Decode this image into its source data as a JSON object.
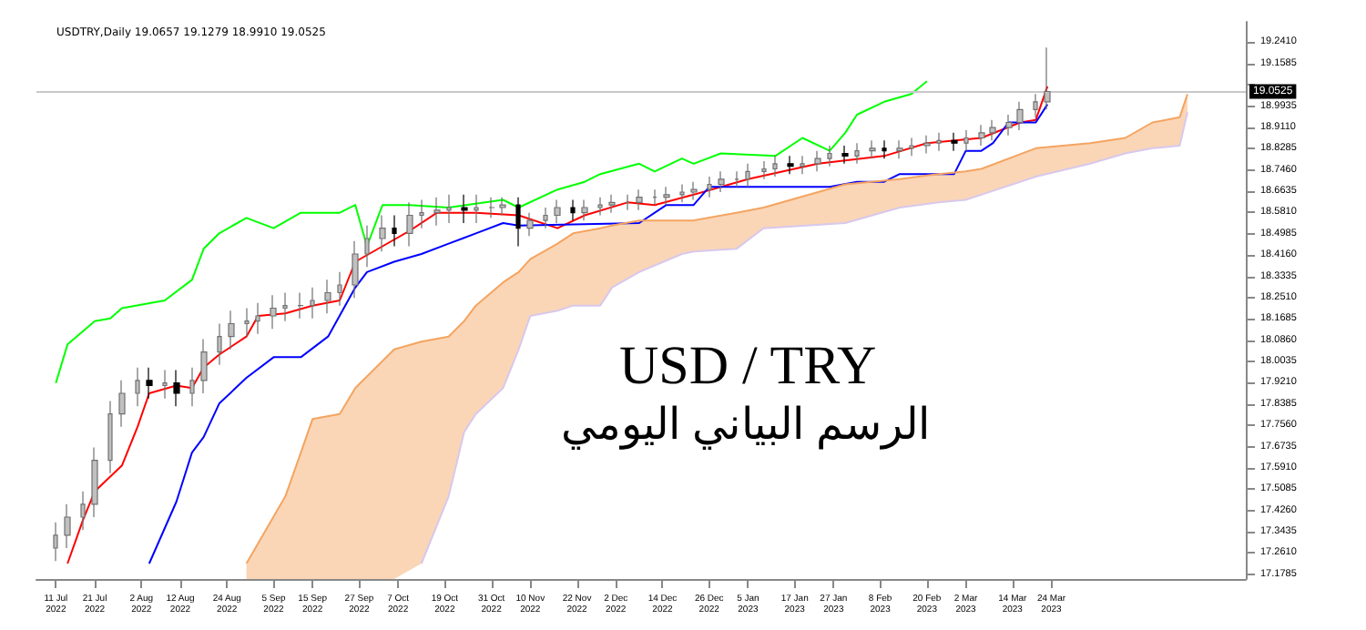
{
  "chart_data": {
    "type": "candlestick",
    "title": "USDTRY,Daily 19.0657 19.1279 18.9910 19.0525",
    "annotations": [
      "USD / TRY",
      "الرسم البياني اليومي"
    ],
    "x": [
      "2022-07-11",
      "2022-07-14",
      "2022-07-18",
      "2022-07-21",
      "2022-07-25",
      "2022-07-28",
      "2022-08-01",
      "2022-08-04",
      "2022-08-08",
      "2022-08-11",
      "2022-08-15",
      "2022-08-18",
      "2022-08-22",
      "2022-08-25",
      "2022-08-29",
      "2022-09-01",
      "2022-09-05",
      "2022-09-08",
      "2022-09-12",
      "2022-09-15",
      "2022-09-19",
      "2022-09-22",
      "2022-09-26",
      "2022-09-29",
      "2022-10-03",
      "2022-10-06",
      "2022-10-10",
      "2022-10-13",
      "2022-10-17",
      "2022-10-20",
      "2022-10-24",
      "2022-10-27",
      "2022-10-31",
      "2022-11-03",
      "2022-11-07",
      "2022-11-10",
      "2022-11-14",
      "2022-11-17",
      "2022-11-21",
      "2022-11-24",
      "2022-11-28",
      "2022-12-01",
      "2022-12-05",
      "2022-12-08",
      "2022-12-12",
      "2022-12-15",
      "2022-12-19",
      "2022-12-22",
      "2022-12-26",
      "2022-12-29",
      "2023-01-02",
      "2023-01-05",
      "2023-01-09",
      "2023-01-12",
      "2023-01-16",
      "2023-01-19",
      "2023-01-23",
      "2023-01-26",
      "2023-01-30",
      "2023-02-02",
      "2023-02-06",
      "2023-02-09",
      "2023-02-13",
      "2023-02-16",
      "2023-02-20",
      "2023-02-23",
      "2023-02-27",
      "2023-03-02",
      "2023-03-06",
      "2023-03-09",
      "2023-03-13",
      "2023-03-16",
      "2023-03-20",
      "2023-03-23"
    ],
    "ohlc": [
      [
        17.28,
        17.38,
        17.23,
        17.33
      ],
      [
        17.33,
        17.45,
        17.28,
        17.4
      ],
      [
        17.4,
        17.5,
        17.35,
        17.45
      ],
      [
        17.45,
        17.67,
        17.4,
        17.62
      ],
      [
        17.62,
        17.85,
        17.57,
        17.8
      ],
      [
        17.8,
        17.93,
        17.75,
        17.88
      ],
      [
        17.88,
        17.98,
        17.83,
        17.93
      ],
      [
        17.93,
        17.98,
        17.86,
        17.91
      ],
      [
        17.91,
        17.97,
        17.86,
        17.92
      ],
      [
        17.92,
        17.97,
        17.83,
        17.88
      ],
      [
        17.88,
        17.98,
        17.83,
        17.93
      ],
      [
        17.93,
        18.09,
        17.88,
        18.04
      ],
      [
        18.04,
        18.15,
        17.99,
        18.1
      ],
      [
        18.1,
        18.2,
        18.05,
        18.15
      ],
      [
        18.15,
        18.21,
        18.1,
        18.16
      ],
      [
        18.16,
        18.23,
        18.11,
        18.18
      ],
      [
        18.18,
        18.26,
        18.13,
        18.21
      ],
      [
        18.21,
        18.27,
        18.16,
        18.22
      ],
      [
        18.22,
        18.27,
        18.17,
        18.22
      ],
      [
        18.22,
        18.29,
        18.17,
        18.24
      ],
      [
        18.24,
        18.32,
        18.19,
        18.27
      ],
      [
        18.27,
        18.35,
        18.22,
        18.3
      ],
      [
        18.3,
        18.47,
        18.25,
        18.42
      ],
      [
        18.42,
        18.53,
        18.37,
        18.48
      ],
      [
        18.48,
        18.57,
        18.43,
        18.52
      ],
      [
        18.52,
        18.57,
        18.45,
        18.5
      ],
      [
        18.5,
        18.62,
        18.45,
        18.57
      ],
      [
        18.57,
        18.63,
        18.52,
        18.58
      ],
      [
        18.58,
        18.64,
        18.53,
        18.59
      ],
      [
        18.59,
        18.65,
        18.54,
        18.6
      ],
      [
        18.6,
        18.65,
        18.54,
        18.59
      ],
      [
        18.59,
        18.65,
        18.54,
        18.6
      ],
      [
        18.6,
        18.64,
        18.56,
        18.6
      ],
      [
        18.6,
        18.64,
        18.57,
        18.61
      ],
      [
        18.61,
        18.64,
        18.45,
        18.52
      ],
      [
        18.52,
        18.58,
        18.49,
        18.55
      ],
      [
        18.55,
        18.6,
        18.52,
        18.57
      ],
      [
        18.57,
        18.63,
        18.54,
        18.6
      ],
      [
        18.6,
        18.63,
        18.55,
        18.58
      ],
      [
        18.58,
        18.63,
        18.55,
        18.6
      ],
      [
        18.6,
        18.64,
        18.57,
        18.61
      ],
      [
        18.61,
        18.65,
        18.58,
        18.62
      ],
      [
        18.62,
        18.65,
        18.59,
        18.62
      ],
      [
        18.62,
        18.67,
        18.59,
        18.64
      ],
      [
        18.64,
        18.67,
        18.61,
        18.64
      ],
      [
        18.64,
        18.68,
        18.61,
        18.65
      ],
      [
        18.65,
        18.69,
        18.62,
        18.66
      ],
      [
        18.66,
        18.7,
        18.63,
        18.67
      ],
      [
        18.67,
        18.72,
        18.64,
        18.69
      ],
      [
        18.69,
        18.74,
        18.66,
        18.71
      ],
      [
        18.71,
        18.74,
        18.68,
        18.71
      ],
      [
        18.71,
        18.77,
        18.68,
        18.74
      ],
      [
        18.74,
        18.78,
        18.71,
        18.75
      ],
      [
        18.75,
        18.8,
        18.72,
        18.77
      ],
      [
        18.77,
        18.8,
        18.73,
        18.76
      ],
      [
        18.76,
        18.8,
        18.73,
        18.77
      ],
      [
        18.77,
        18.82,
        18.74,
        18.79
      ],
      [
        18.79,
        18.84,
        18.76,
        18.81
      ],
      [
        18.81,
        18.84,
        18.77,
        18.8
      ],
      [
        18.8,
        18.85,
        18.77,
        18.82
      ],
      [
        18.82,
        18.86,
        18.79,
        18.83
      ],
      [
        18.83,
        18.86,
        18.79,
        18.82
      ],
      [
        18.82,
        18.86,
        18.79,
        18.83
      ],
      [
        18.83,
        18.87,
        18.8,
        18.84
      ],
      [
        18.84,
        18.88,
        18.81,
        18.85
      ],
      [
        18.85,
        18.89,
        18.82,
        18.86
      ],
      [
        18.86,
        18.89,
        18.82,
        18.85
      ],
      [
        18.85,
        18.9,
        18.82,
        18.87
      ],
      [
        18.87,
        18.92,
        18.84,
        18.89
      ],
      [
        18.89,
        18.94,
        18.86,
        18.91
      ],
      [
        18.91,
        18.96,
        18.88,
        18.93
      ],
      [
        18.93,
        19.01,
        18.9,
        18.98
      ],
      [
        18.98,
        19.04,
        18.95,
        19.01
      ],
      [
        19.01,
        19.22,
        18.98,
        19.05
      ]
    ],
    "series": [
      {
        "type": "line",
        "color": "#ff0000",
        "x": [
          "2022-07-14",
          "2022-07-18",
          "2022-07-21",
          "2022-07-28",
          "2022-08-01",
          "2022-08-04",
          "2022-08-11",
          "2022-08-15",
          "2022-08-18",
          "2022-08-22",
          "2022-08-29",
          "2022-09-01",
          "2022-09-08",
          "2022-09-15",
          "2022-09-22",
          "2022-09-26",
          "2022-10-03",
          "2022-10-10",
          "2022-10-17",
          "2022-10-27",
          "2022-11-07",
          "2022-11-17",
          "2022-11-24",
          "2022-12-05",
          "2022-12-12",
          "2022-12-22",
          "2023-01-05",
          "2023-01-23",
          "2023-02-09",
          "2023-02-20",
          "2023-03-06",
          "2023-03-16",
          "2023-03-20",
          "2023-03-23"
        ],
        "values": [
          17.22,
          17.39,
          17.5,
          17.6,
          17.75,
          17.88,
          17.91,
          17.9,
          17.98,
          18.03,
          18.1,
          18.18,
          18.19,
          18.22,
          18.24,
          18.39,
          18.45,
          18.51,
          18.58,
          18.58,
          18.57,
          18.52,
          18.57,
          18.62,
          18.61,
          18.65,
          18.71,
          18.77,
          18.8,
          18.85,
          18.87,
          18.93,
          18.94,
          19.07
        ]
      },
      {
        "type": "line",
        "color": "#0000ff",
        "x": [
          "2022-08-04",
          "2022-08-11",
          "2022-08-15",
          "2022-08-18",
          "2022-08-22",
          "2022-08-29",
          "2022-09-05",
          "2022-09-12",
          "2022-09-19",
          "2022-09-26",
          "2022-09-29",
          "2022-10-06",
          "2022-10-13",
          "2022-10-20",
          "2022-10-27",
          "2022-11-03",
          "2022-11-07",
          "2022-12-08",
          "2022-12-15",
          "2022-12-22",
          "2022-12-26",
          "2023-01-26",
          "2023-02-02",
          "2023-02-09",
          "2023-02-13",
          "2023-02-27",
          "2023-03-02",
          "2023-03-06",
          "2023-03-09",
          "2023-03-13",
          "2023-03-20",
          "2023-03-23"
        ],
        "values": [
          17.22,
          17.46,
          17.65,
          17.71,
          17.84,
          17.94,
          18.02,
          18.02,
          18.1,
          18.29,
          18.35,
          18.39,
          18.42,
          18.46,
          18.5,
          18.54,
          18.53,
          18.54,
          18.61,
          18.61,
          18.68,
          18.68,
          18.7,
          18.7,
          18.73,
          18.73,
          18.82,
          18.82,
          18.85,
          18.93,
          18.93,
          19.0
        ]
      },
      {
        "type": "line",
        "color": "#00ff00",
        "x": [
          "2022-07-11",
          "2022-07-14",
          "2022-07-21",
          "2022-07-25",
          "2022-07-28",
          "2022-08-08",
          "2022-08-15",
          "2022-08-18",
          "2022-08-22",
          "2022-08-29",
          "2022-09-05",
          "2022-09-12",
          "2022-09-22",
          "2022-09-26",
          "2022-09-29",
          "2022-10-03",
          "2022-10-10",
          "2022-10-20",
          "2022-11-03",
          "2022-11-07",
          "2022-11-17",
          "2022-11-24",
          "2022-11-28",
          "2022-12-08",
          "2022-12-12",
          "2022-12-19",
          "2022-12-22",
          "2022-12-29",
          "2023-01-12",
          "2023-01-19",
          "2023-01-26",
          "2023-01-30",
          "2023-02-02",
          "2023-02-09",
          "2023-02-16",
          "2023-02-20"
        ],
        "values": [
          17.92,
          18.07,
          18.16,
          18.17,
          18.21,
          18.24,
          18.32,
          18.44,
          18.5,
          18.56,
          18.52,
          18.58,
          18.58,
          18.61,
          18.45,
          18.61,
          18.61,
          18.6,
          18.63,
          18.6,
          18.67,
          18.7,
          18.73,
          18.77,
          18.74,
          18.79,
          18.77,
          18.81,
          18.8,
          18.87,
          18.82,
          18.89,
          18.96,
          19.01,
          19.04,
          19.09
        ]
      },
      {
        "type": "line",
        "color": "#f4a460",
        "x": [
          "2022-08-29",
          "2022-09-08",
          "2022-09-12",
          "2022-09-15",
          "2022-09-22",
          "2022-09-26",
          "2022-10-06",
          "2022-10-13",
          "2022-10-20",
          "2022-10-24",
          "2022-10-27",
          "2022-11-03",
          "2022-11-07",
          "2022-11-10",
          "2022-11-17",
          "2022-11-21",
          "2022-11-28",
          "2022-12-01",
          "2022-12-08",
          "2022-12-19",
          "2022-12-22",
          "2023-01-02",
          "2023-01-09",
          "2023-01-30",
          "2023-02-13",
          "2023-02-23",
          "2023-03-02",
          "2023-03-06",
          "2023-03-20",
          "2023-04-03",
          "2023-04-12",
          "2023-04-19",
          "2023-04-26",
          "2023-04-28"
        ],
        "values": [
          17.22,
          17.48,
          17.65,
          17.78,
          17.8,
          17.9,
          18.05,
          18.08,
          18.1,
          18.16,
          18.22,
          18.31,
          18.35,
          18.4,
          18.46,
          18.5,
          18.52,
          18.53,
          18.55,
          18.55,
          18.55,
          18.58,
          18.6,
          18.69,
          18.71,
          18.73,
          18.74,
          18.75,
          18.83,
          18.85,
          18.87,
          18.93,
          18.95,
          19.04
        ],
        "lower": [
          17.16,
          17.16,
          17.16,
          17.16,
          17.16,
          17.16,
          17.16,
          17.22,
          17.48,
          17.73,
          17.8,
          17.9,
          18.05,
          18.18,
          18.2,
          18.22,
          18.22,
          18.29,
          18.35,
          18.42,
          18.43,
          18.44,
          18.52,
          18.54,
          18.6,
          18.62,
          18.63,
          18.65,
          18.72,
          18.77,
          18.81,
          18.83,
          18.84,
          18.97
        ],
        "upper": [
          17.22,
          17.48,
          17.65,
          17.78,
          17.8,
          17.9,
          18.05,
          18.08,
          18.1,
          18.16,
          18.22,
          18.31,
          18.35,
          18.4,
          18.46,
          18.5,
          18.52,
          18.53,
          18.55,
          18.55,
          18.55,
          18.58,
          18.6,
          18.69,
          18.71,
          18.73,
          18.74,
          18.75,
          18.83,
          18.85,
          18.87,
          18.93,
          18.95,
          19.04
        ]
      },
      {
        "type": "line",
        "color": "#d8c8ec",
        "x": [
          "2022-10-13",
          "2022-10-20",
          "2022-10-24",
          "2022-10-27",
          "2022-11-03",
          "2022-11-07",
          "2022-11-10",
          "2022-11-17",
          "2022-11-21",
          "2022-11-28",
          "2022-12-01",
          "2022-12-08",
          "2022-12-19",
          "2022-12-22",
          "2023-01-02",
          "2023-01-09",
          "2023-01-30",
          "2023-02-13",
          "2023-02-23",
          "2023-03-02",
          "2023-03-06",
          "2023-03-20",
          "2023-04-03",
          "2023-04-12",
          "2023-04-19",
          "2023-04-26",
          "2023-04-28"
        ],
        "values": [
          17.22,
          17.48,
          17.73,
          17.8,
          17.9,
          18.05,
          18.18,
          18.2,
          18.22,
          18.22,
          18.29,
          18.35,
          18.42,
          18.43,
          18.44,
          18.52,
          18.54,
          18.6,
          18.62,
          18.63,
          18.65,
          18.72,
          18.77,
          18.81,
          18.83,
          18.84,
          18.97
        ]
      }
    ],
    "ref_lines": [
      {
        "axis": "y",
        "value": 19.0525,
        "label": "19.0525",
        "color": "#c8c8c8"
      }
    ],
    "xlim": [
      "2022-07-06",
      "2023-05-13"
    ],
    "xticks": [
      {
        "value": "2022-07-11",
        "label": "11 Jul 2022"
      },
      {
        "value": "2022-07-21",
        "label": "21 Jul 2022"
      },
      {
        "value": "2022-08-02",
        "label": "2 Aug 2022"
      },
      {
        "value": "2022-08-12",
        "label": "12 Aug 2022"
      },
      {
        "value": "2022-08-24",
        "label": "24 Aug 2022"
      },
      {
        "value": "2022-09-05",
        "label": "5 Sep 2022"
      },
      {
        "value": "2022-09-15",
        "label": "15 Sep 2022"
      },
      {
        "value": "2022-09-27",
        "label": "27 Sep 2022"
      },
      {
        "value": "2022-10-07",
        "label": "7 Oct 2022"
      },
      {
        "value": "2022-10-19",
        "label": "19 Oct 2022"
      },
      {
        "value": "2022-10-31",
        "label": "31 Oct 2022"
      },
      {
        "value": "2022-11-10",
        "label": "10 Nov 2022"
      },
      {
        "value": "2022-11-22",
        "label": "22 Nov 2022"
      },
      {
        "value": "2022-12-02",
        "label": "2 Dec 2022"
      },
      {
        "value": "2022-12-14",
        "label": "14 Dec 2022"
      },
      {
        "value": "2022-12-26",
        "label": "26 Dec 2022"
      },
      {
        "value": "2023-01-05",
        "label": "5 Jan 2023"
      },
      {
        "value": "2023-01-17",
        "label": "17 Jan 2023"
      },
      {
        "value": "2023-01-27",
        "label": "27 Jan 2023"
      },
      {
        "value": "2023-02-08",
        "label": "8 Feb 2023"
      },
      {
        "value": "2023-02-20",
        "label": "20 Feb 2023"
      },
      {
        "value": "2023-03-02",
        "label": "2 Mar 2023"
      },
      {
        "value": "2023-03-14",
        "label": "14 Mar 2023"
      },
      {
        "value": "2023-03-24",
        "label": "24 Mar 2023"
      }
    ],
    "ylim": [
      17.16,
      19.32
    ],
    "yticks": [
      {
        "value": 17.1785,
        "label": "17.1785"
      },
      {
        "value": 17.261,
        "label": "17.2610"
      },
      {
        "value": 17.3435,
        "label": "17.3435"
      },
      {
        "value": 17.426,
        "label": "17.4260"
      },
      {
        "value": 17.5085,
        "label": "17.5085"
      },
      {
        "value": 17.591,
        "label": "17.5910"
      },
      {
        "value": 17.6735,
        "label": "17.6735"
      },
      {
        "value": 17.756,
        "label": "17.7560"
      },
      {
        "value": 17.8385,
        "label": "17.8385"
      },
      {
        "value": 17.921,
        "label": "17.9210"
      },
      {
        "value": 18.0035,
        "label": "18.0035"
      },
      {
        "value": 18.086,
        "label": "18.0860"
      },
      {
        "value": 18.1685,
        "label": "18.1685"
      },
      {
        "value": 18.251,
        "label": "18.2510"
      },
      {
        "value": 18.3335,
        "label": "18.3335"
      },
      {
        "value": 18.416,
        "label": "18.4160"
      },
      {
        "value": 18.4985,
        "label": "18.4985"
      },
      {
        "value": 18.581,
        "label": "18.5810"
      },
      {
        "value": 18.6635,
        "label": "18.6635"
      },
      {
        "value": 18.746,
        "label": "18.7460"
      },
      {
        "value": 18.8285,
        "label": "18.8285"
      },
      {
        "value": 18.911,
        "label": "18.9110"
      },
      {
        "value": 18.9935,
        "label": "18.9935"
      },
      {
        "value": 19.076,
        "label": null
      },
      {
        "value": 19.1585,
        "label": "19.1585"
      },
      {
        "value": 19.241,
        "label": "19.2410"
      }
    ],
    "marker": "none"
  }
}
